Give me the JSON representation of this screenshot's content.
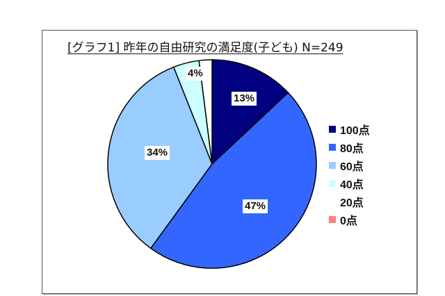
{
  "chart_data": {
    "type": "pie",
    "title": "[グラフ1] 昨年の自由研究の満足度(子ども) N=249",
    "n": 249,
    "categories": [
      "100点",
      "80点",
      "60点",
      "40点",
      "20点",
      "0点"
    ],
    "values": [
      13,
      47,
      34,
      4,
      2,
      0
    ],
    "value_labels": [
      "13%",
      "47%",
      "34%",
      "4%",
      "",
      ""
    ],
    "colors": [
      "#000080",
      "#3366FF",
      "#99CCFF",
      "#CCFFFF",
      "#FFFFFF",
      "#FF8080"
    ],
    "legend_position": "right",
    "start_angle": "12 o'clock, clockwise"
  },
  "labels": {
    "title": "[グラフ1]  昨年の自由研究の満足度(子ども)   N=249",
    "slice_100": "13%",
    "slice_80": "47%",
    "slice_60": "34%",
    "slice_40": "4%"
  },
  "legend": [
    {
      "label": "100点",
      "color": "#000080"
    },
    {
      "label": "80点",
      "color": "#3366FF"
    },
    {
      "label": "60点",
      "color": "#99CCFF"
    },
    {
      "label": "40点",
      "color": "#CCFFFF"
    },
    {
      "label": "20点",
      "color": "#FFFFFF"
    },
    {
      "label": "0点",
      "color": "#FF8080"
    }
  ]
}
